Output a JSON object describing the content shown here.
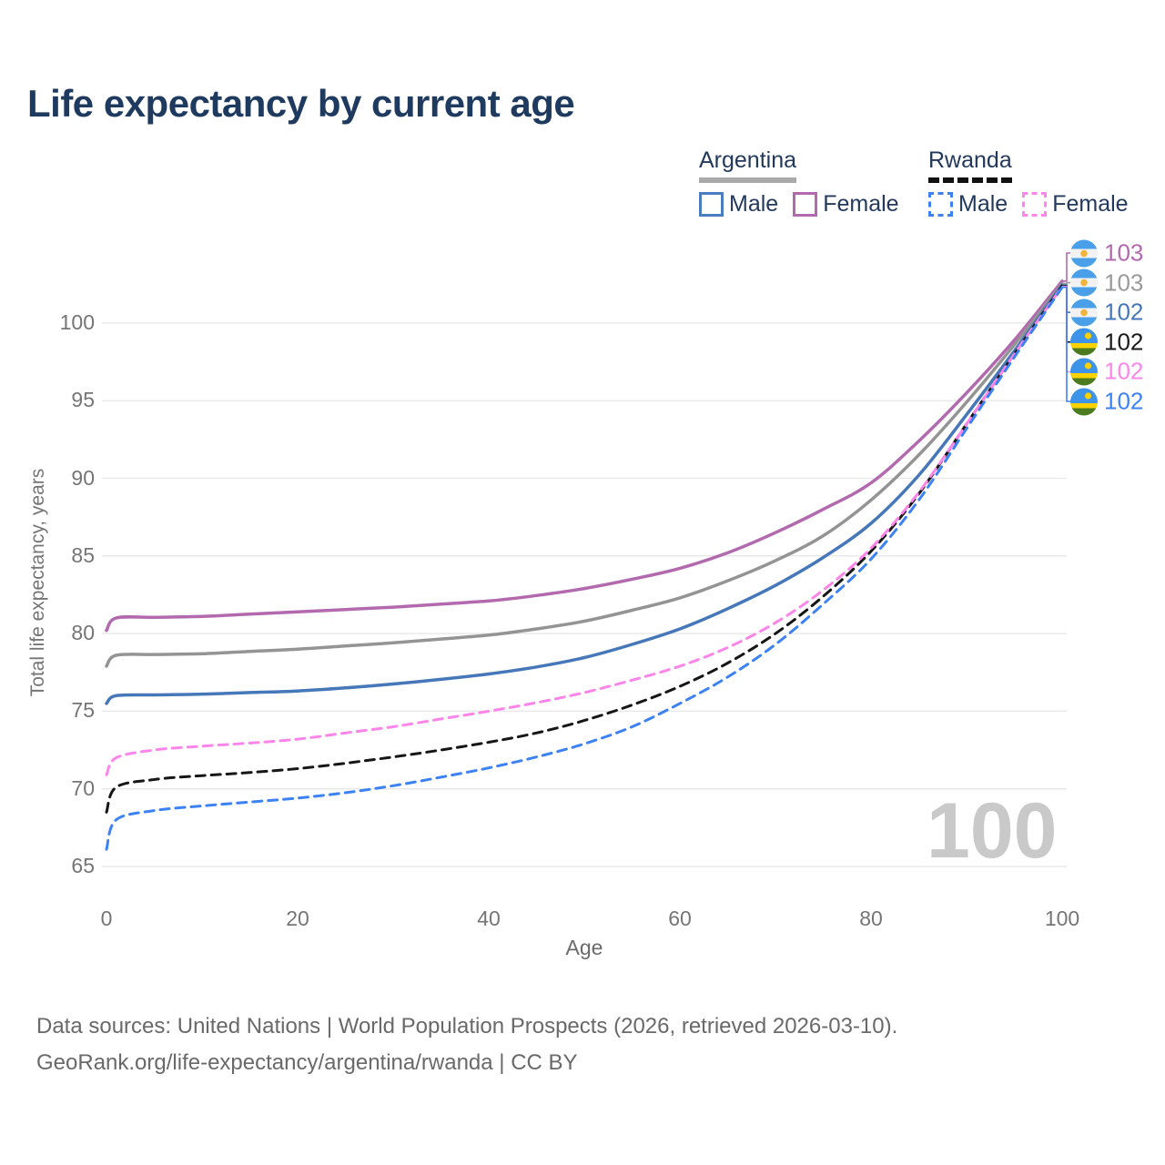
{
  "title": "Life expectancy by current age",
  "legend": {
    "groups": [
      {
        "name": "Argentina",
        "line_style": "solid",
        "underline_color": "#a9a9a9",
        "items": [
          {
            "label": "Male",
            "color": "#4a7cc0"
          },
          {
            "label": "Female",
            "color": "#b269ae"
          }
        ]
      },
      {
        "name": "Rwanda",
        "line_style": "dashed",
        "underline_color": "#111111",
        "items": [
          {
            "label": "Male",
            "color": "#3d82f2"
          },
          {
            "label": "Female",
            "color": "#fc85e9"
          }
        ]
      }
    ]
  },
  "chart_data": {
    "type": "line",
    "title": "Life expectancy by current age",
    "xlabel": "Age",
    "ylabel": "Total life expectancy, years",
    "xlim": [
      0,
      100
    ],
    "ylim": [
      63.5,
      104
    ],
    "xticks": [
      0,
      20,
      40,
      60,
      80,
      100
    ],
    "yticks": [
      65,
      70,
      75,
      80,
      85,
      90,
      95,
      100
    ],
    "grid": "horizontal",
    "legend_position": "top-right",
    "age_counter": "100",
    "x": [
      0,
      1,
      5,
      10,
      15,
      20,
      25,
      30,
      35,
      40,
      45,
      50,
      55,
      60,
      65,
      70,
      75,
      80,
      85,
      90,
      95,
      100
    ],
    "series": [
      {
        "name": "Argentina Female",
        "country": "Argentina",
        "sex": "Female",
        "color": "#b269ae",
        "dashed": false,
        "flag": "argentina",
        "end_label": "103",
        "label_color": "#b269ae",
        "values": [
          80.2,
          81.0,
          81.05,
          81.1,
          81.25,
          81.4,
          81.55,
          81.7,
          81.9,
          82.1,
          82.45,
          82.9,
          83.5,
          84.2,
          85.2,
          86.5,
          88.0,
          89.7,
          92.4,
          95.5,
          98.9,
          102.7
        ]
      },
      {
        "name": "Argentina Total",
        "country": "Argentina",
        "sex": "Both",
        "color": "#949494",
        "dashed": false,
        "flag": "argentina",
        "end_label": "103",
        "label_color": "#9a9a9a",
        "values": [
          77.9,
          78.6,
          78.65,
          78.7,
          78.85,
          79.0,
          79.2,
          79.4,
          79.65,
          79.9,
          80.3,
          80.8,
          81.5,
          82.3,
          83.4,
          84.7,
          86.3,
          88.6,
          91.5,
          94.9,
          98.6,
          102.55
        ]
      },
      {
        "name": "Argentina Male",
        "country": "Argentina",
        "sex": "Male",
        "color": "#4677b9",
        "dashed": false,
        "flag": "argentina",
        "end_label": "102",
        "label_color": "#4677b9",
        "values": [
          75.5,
          76.0,
          76.05,
          76.1,
          76.2,
          76.3,
          76.5,
          76.75,
          77.05,
          77.4,
          77.85,
          78.45,
          79.3,
          80.3,
          81.6,
          83.1,
          84.9,
          87.1,
          90.2,
          94.1,
          98.2,
          102.45
        ]
      },
      {
        "name": "Rwanda Total",
        "country": "Rwanda",
        "sex": "Both",
        "color": "#161616",
        "dashed": true,
        "flag": "rwanda",
        "end_label": "102",
        "label_color": "#1a1a1a",
        "values": [
          68.5,
          70.1,
          70.6,
          70.85,
          71.05,
          71.3,
          71.65,
          72.05,
          72.5,
          73.0,
          73.6,
          74.4,
          75.4,
          76.6,
          78.1,
          80.0,
          82.4,
          85.3,
          89.0,
          93.5,
          98.0,
          102.4
        ]
      },
      {
        "name": "Rwanda Female",
        "country": "Rwanda",
        "sex": "Female",
        "color": "#fc85e9",
        "dashed": true,
        "flag": "rwanda",
        "end_label": "102",
        "label_color": "#fc85e9",
        "values": [
          70.9,
          72.0,
          72.5,
          72.75,
          72.95,
          73.2,
          73.6,
          74.0,
          74.5,
          75.0,
          75.55,
          76.2,
          77.0,
          77.9,
          79.1,
          80.7,
          82.8,
          85.5,
          89.1,
          93.5,
          98.0,
          102.35
        ]
      },
      {
        "name": "Rwanda Male",
        "country": "Rwanda",
        "sex": "Male",
        "color": "#3d82f2",
        "dashed": true,
        "flag": "rwanda",
        "end_label": "102",
        "label_color": "#3d82f2",
        "values": [
          66.1,
          68.0,
          68.6,
          68.9,
          69.15,
          69.4,
          69.75,
          70.2,
          70.75,
          71.35,
          72.05,
          72.9,
          74.0,
          75.5,
          77.2,
          79.3,
          81.9,
          84.8,
          88.6,
          93.2,
          97.8,
          102.3
        ]
      }
    ]
  },
  "footer": {
    "line1": "Data sources: United Nations | World Population Prospects (2026, retrieved 2026-03-10).",
    "line2": "GeoRank.org/life-expectancy/argentina/rwanda | CC BY"
  }
}
